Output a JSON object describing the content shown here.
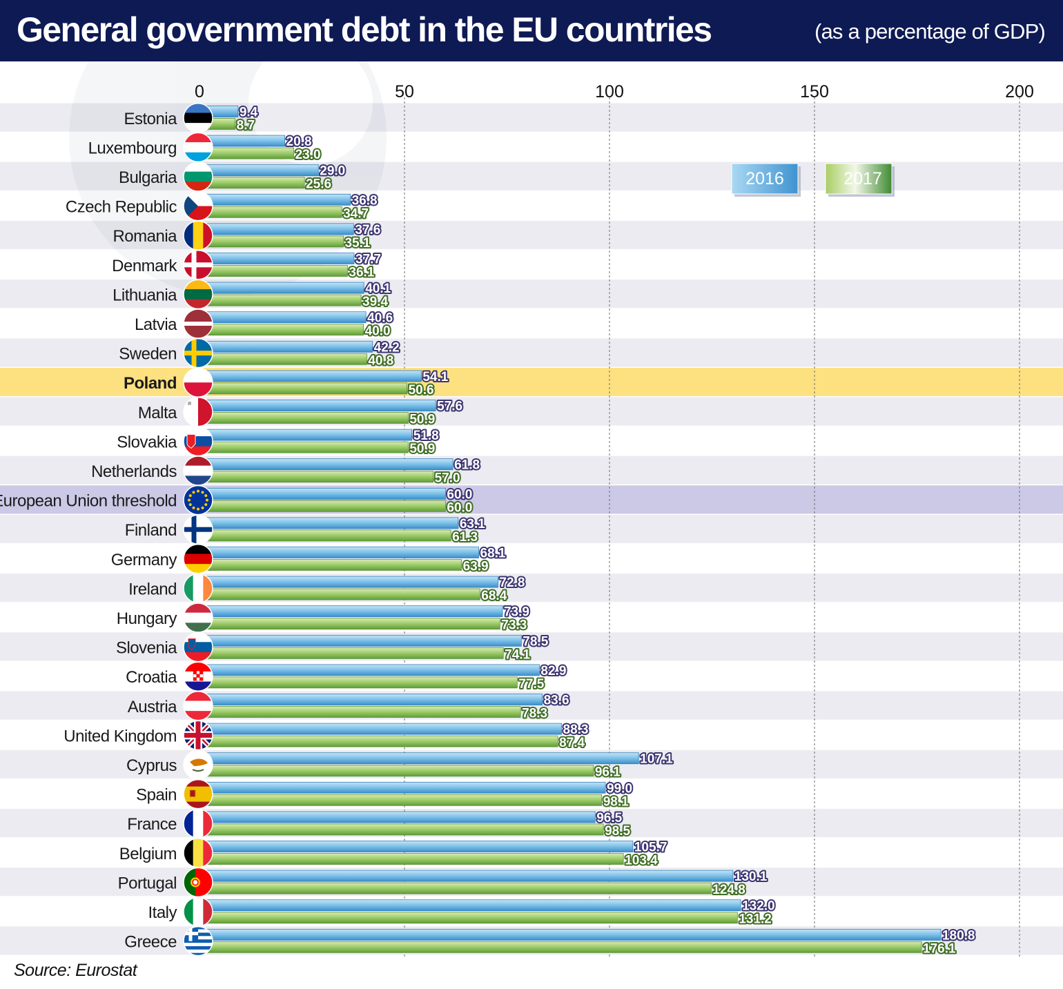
{
  "header": {
    "title": "General government debt in the EU countries",
    "subtitle": "(as a percentage of GDP)"
  },
  "source": "Source: Eurostat",
  "colors": {
    "header_bg": "#0e1a54",
    "series_2016": "#4ea6da",
    "series_2017": "#5f9e3a",
    "highlight_poland": "#fde181",
    "highlight_eu": "#cbc9e6",
    "stripe": "#ebebf1"
  },
  "chart_data": {
    "type": "bar",
    "orientation": "horizontal",
    "title": "General government debt in the EU countries",
    "subtitle": "(as a percentage of GDP)",
    "xlabel": "",
    "ylabel": "",
    "xlim": [
      0,
      200
    ],
    "xticks": [
      0,
      50,
      100,
      150,
      200
    ],
    "grid": true,
    "legend": "top-right",
    "categories": [
      "Estonia",
      "Luxembourg",
      "Bulgaria",
      "Czech Republic",
      "Romania",
      "Denmark",
      "Lithuania",
      "Latvia",
      "Sweden",
      "Poland",
      "Malta",
      "Slovakia",
      "Netherlands",
      "European Union threshold",
      "Finland",
      "Germany",
      "Ireland",
      "Hungary",
      "Slovenia",
      "Croatia",
      "Austria",
      "United Kingdom",
      "Cyprus",
      "Spain",
      "France",
      "Belgium",
      "Portugal",
      "Italy",
      "Greece"
    ],
    "highlight": {
      "Poland": "poland",
      "European Union threshold": "eu"
    },
    "series": [
      {
        "name": "2016",
        "values": [
          9.4,
          20.8,
          29.0,
          36.8,
          37.6,
          37.7,
          40.1,
          40.6,
          42.2,
          54.1,
          57.6,
          51.8,
          61.8,
          60.0,
          63.1,
          68.1,
          72.8,
          73.9,
          78.5,
          82.9,
          83.6,
          88.3,
          107.1,
          99.0,
          96.5,
          105.7,
          130.1,
          132.0,
          180.8
        ]
      },
      {
        "name": "2017",
        "values": [
          8.7,
          23.0,
          25.6,
          34.7,
          35.1,
          36.1,
          39.4,
          40.0,
          40.8,
          50.6,
          50.9,
          50.9,
          57.0,
          60.0,
          61.3,
          63.9,
          68.4,
          73.3,
          74.1,
          77.5,
          78.3,
          87.4,
          96.1,
          98.1,
          98.5,
          103.4,
          124.8,
          131.2,
          176.1
        ]
      }
    ]
  }
}
